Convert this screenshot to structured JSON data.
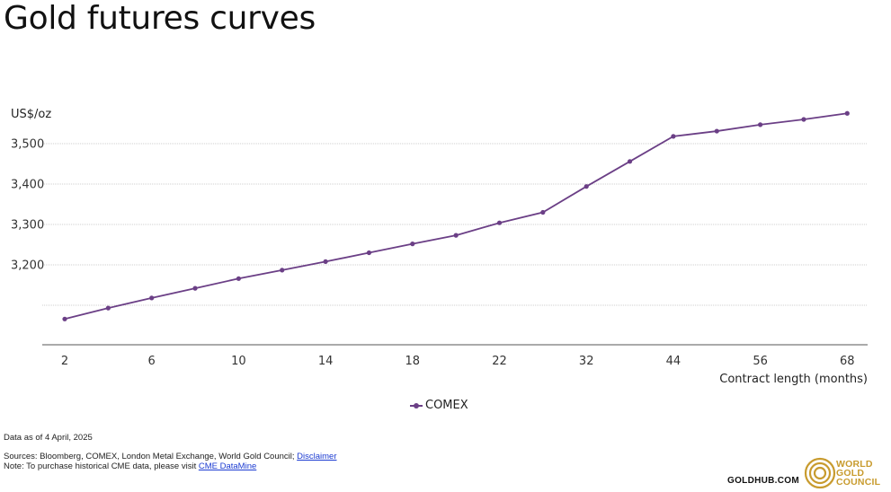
{
  "chart_data": {
    "type": "line",
    "title": "Gold futures curves",
    "ylabel": "US$/oz",
    "xlabel": "Contract length (months)",
    "ylim": [
      3040,
      3540
    ],
    "yticks": [
      3200,
      3300,
      3400,
      3500
    ],
    "ytick_labels": [
      "3,200",
      "3,300",
      "3,400",
      "3,500"
    ],
    "gridlines": [
      3100,
      3200,
      3300,
      3400,
      3500
    ],
    "grid": true,
    "legend_position": "bottom-center",
    "x": [
      2,
      4,
      6,
      8,
      10,
      12,
      14,
      16,
      18,
      20,
      22,
      26,
      32,
      38,
      44,
      50,
      56,
      62,
      68
    ],
    "xtick_labels": [
      "2",
      "6",
      "10",
      "14",
      "18",
      "22",
      "32",
      "44",
      "56",
      "68"
    ],
    "xtick_values": [
      2,
      6,
      10,
      14,
      18,
      22,
      32,
      44,
      56,
      68
    ],
    "series": [
      {
        "name": "COMEX",
        "color": "#6b3f86",
        "values": [
          3066,
          3093,
          3118,
          3142,
          3166,
          3187,
          3208,
          3230,
          3252,
          3273,
          3304,
          3330,
          3394,
          3456,
          3518,
          3531,
          3547,
          3560,
          3575
        ]
      }
    ]
  },
  "footer": {
    "data_as_of": "Data as of 4 April, 2025",
    "sources_prefix": "Sources: Bloomberg, COMEX, London Metal Exchange, World Gold Council; ",
    "sources_link": "Disclaimer",
    "note_prefix": "Note: To purchase historical CME data, please visit ",
    "note_link": "CME DataMine",
    "site": "GOLDHUB.COM",
    "logo_line1": "WORLD",
    "logo_line2": "GOLD",
    "logo_line3": "COUNCIL",
    "logo_color": "#c89b2e"
  }
}
